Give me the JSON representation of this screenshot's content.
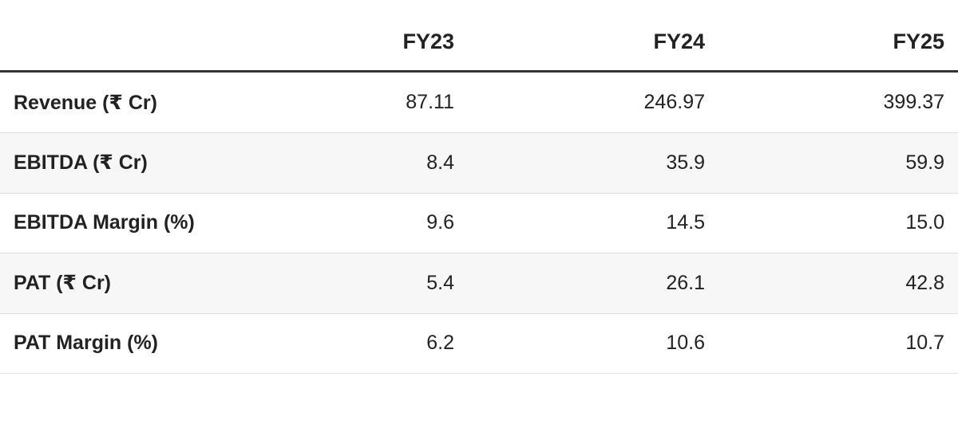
{
  "table": {
    "columns": [
      "FY23",
      "FY24",
      "FY25"
    ],
    "rows": [
      {
        "label": "Revenue (₹ Cr)",
        "values": [
          "87.11",
          "246.97",
          "399.37"
        ]
      },
      {
        "label": "EBITDA (₹ Cr)",
        "values": [
          "8.4",
          "35.9",
          "59.9"
        ]
      },
      {
        "label": "EBITDA Margin (%)",
        "values": [
          "9.6",
          "14.5",
          "15.0"
        ]
      },
      {
        "label": "PAT (₹ Cr)",
        "values": [
          "5.4",
          "26.1",
          "42.8"
        ]
      },
      {
        "label": "PAT Margin (%)",
        "values": [
          "6.2",
          "10.6",
          "10.7"
        ]
      }
    ]
  }
}
